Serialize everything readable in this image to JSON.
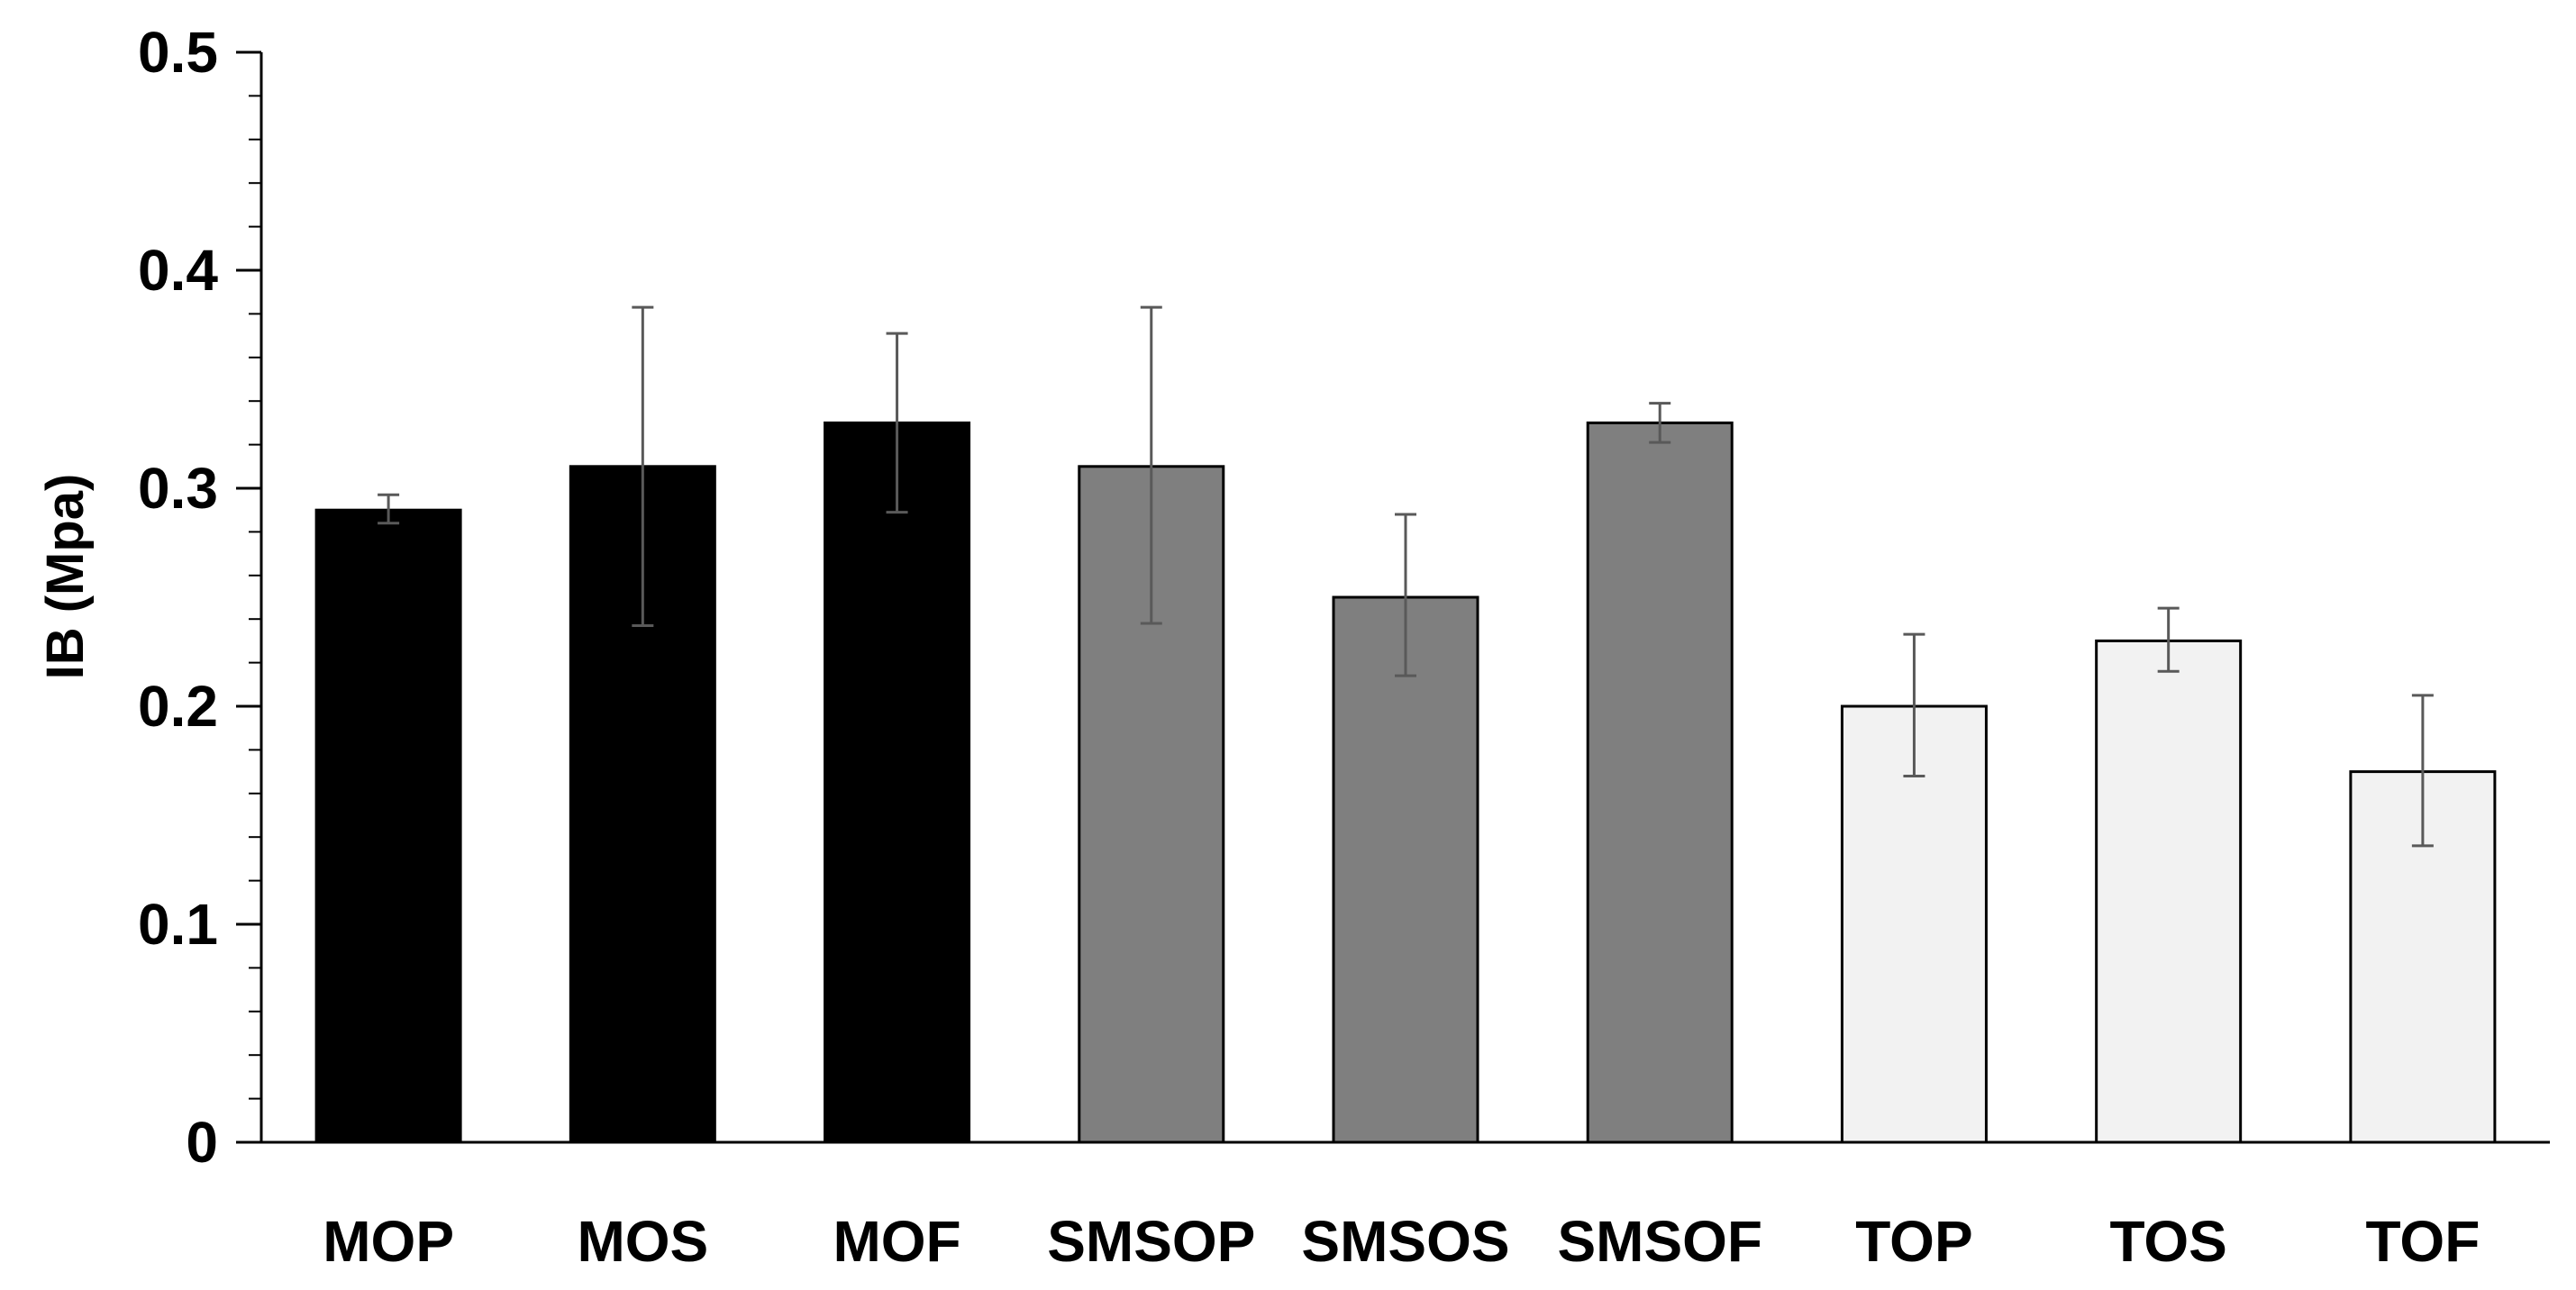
{
  "chart_data": {
    "type": "bar",
    "title": "",
    "xlabel": "",
    "ylabel": "IB (Mpa)",
    "ylim": [
      0,
      0.5
    ],
    "yticks": [
      "0",
      "0.1",
      "0.2",
      "0.3",
      "0.4",
      "0.5"
    ],
    "yminor_step": 0.02,
    "grid": false,
    "categories": [
      "MOP",
      "MOS",
      "MOF",
      "SMSOP",
      "SMSOS",
      "SMSOF",
      "TOP",
      "TOS",
      "TOF"
    ],
    "values": [
      0.29,
      0.31,
      0.33,
      0.31,
      0.25,
      0.33,
      0.2,
      0.23,
      0.17
    ],
    "error_low": [
      0.284,
      0.237,
      0.289,
      0.238,
      0.214,
      0.321,
      0.168,
      0.216,
      0.136
    ],
    "error_high": [
      0.297,
      0.383,
      0.371,
      0.383,
      0.288,
      0.339,
      0.233,
      0.245,
      0.205
    ],
    "bar_colors": [
      "#000000",
      "#000000",
      "#000000",
      "#7f7f7f",
      "#7f7f7f",
      "#7f7f7f",
      "#f2f2f2",
      "#f2f2f2",
      "#f2f2f2"
    ],
    "error_bar_color": "#595959",
    "bar_edge_color": "#000000"
  }
}
